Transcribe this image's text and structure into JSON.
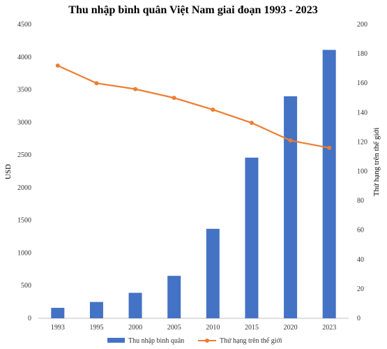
{
  "chart_data": {
    "type": "bar+line",
    "title": "Thu nhập bình quân Việt Nam giai đoạn 1993 - 2023",
    "categories": [
      "1993",
      "1995",
      "2000",
      "2005",
      "2010",
      "2015",
      "2020",
      "2023"
    ],
    "series": [
      {
        "name": "Thu nhập bình quân",
        "type": "bar",
        "axis": "left",
        "color": "#4472C4",
        "values": [
          160,
          250,
          390,
          650,
          1370,
          2460,
          3400,
          4110
        ]
      },
      {
        "name": "Thứ hạng trên thế giới",
        "type": "line",
        "axis": "right",
        "color": "#ED7D31",
        "values": [
          172,
          160,
          156,
          150,
          142,
          133,
          121,
          116
        ]
      }
    ],
    "y_left": {
      "label": "USD",
      "min": 0,
      "max": 4500,
      "step": 500,
      "ticks": [
        "0",
        "500",
        "1000",
        "1500",
        "2000",
        "2500",
        "3000",
        "3500",
        "4000",
        "4500"
      ]
    },
    "y_right": {
      "label": "Thứ hạng trên thế giới",
      "min": 0,
      "max": 200,
      "step": 20,
      "ticks": [
        "0",
        "20",
        "40",
        "60",
        "80",
        "100",
        "120",
        "140",
        "160",
        "180",
        "200"
      ]
    },
    "grid": false,
    "legend_position": "bottom"
  }
}
